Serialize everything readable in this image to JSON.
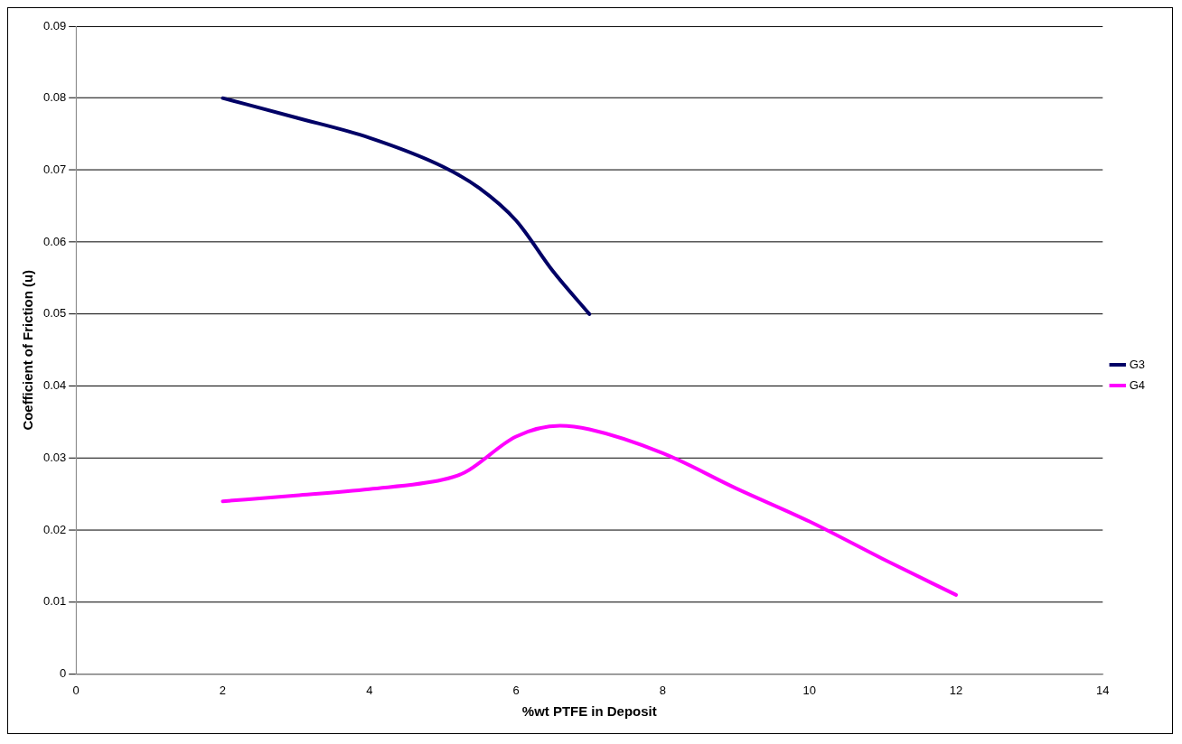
{
  "chart_data": {
    "type": "line",
    "xlabel": "%wt PTFE in Deposit",
    "ylabel": "Coefficient of Friction (u)",
    "xlim": [
      0,
      14
    ],
    "xticks": [
      0,
      2,
      4,
      6,
      8,
      10,
      12,
      14
    ],
    "ylim": [
      0,
      0.09
    ],
    "yticks": [
      0,
      0.01,
      0.02,
      0.03,
      0.04,
      0.05,
      0.06,
      0.07,
      0.08,
      0.09
    ],
    "grid": "y",
    "legend": "right",
    "marker": "none",
    "line_style": "solid",
    "series": [
      {
        "name": "G3",
        "color": "#000066",
        "x": [
          2,
          3,
          4,
          5,
          5.5,
          6,
          6.5,
          7
        ],
        "values": [
          0.08,
          0.0773,
          0.0745,
          0.0705,
          0.0675,
          0.063,
          0.056,
          0.05
        ]
      },
      {
        "name": "G4",
        "color": "#ff00ff",
        "x": [
          2,
          3,
          4,
          5,
          5.3,
          6,
          6.6,
          7,
          8,
          9,
          10,
          11,
          12
        ],
        "values": [
          0.024,
          0.0248,
          0.0257,
          0.027,
          0.028,
          0.033,
          0.0345,
          0.034,
          0.0307,
          0.0258,
          0.0212,
          0.016,
          0.011
        ]
      }
    ]
  }
}
